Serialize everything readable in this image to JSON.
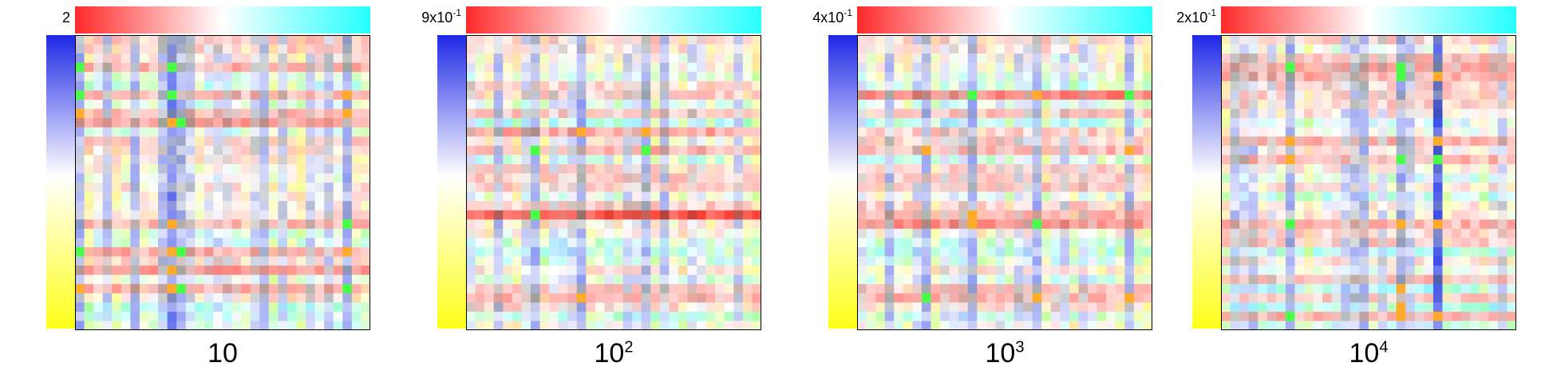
{
  "panels": [
    {
      "id": "p1",
      "scale_label": "2",
      "scale_exp": "",
      "caption_base": "10",
      "caption_exp": "",
      "seed": 11
    },
    {
      "id": "p2",
      "scale_label": "9x10",
      "scale_exp": "-1",
      "caption_base": "10",
      "caption_exp": "2",
      "seed": 23
    },
    {
      "id": "p3",
      "scale_label": "4x10",
      "scale_exp": "-1",
      "caption_base": "10",
      "caption_exp": "3",
      "seed": 23
    },
    {
      "id": "p4",
      "scale_label": "2x10",
      "scale_exp": "-1",
      "caption_base": "10",
      "caption_exp": "4",
      "seed": 37
    }
  ],
  "colors": {
    "horizontal_colorbar": [
      "#ff2a2a",
      "#ffffff",
      "#26ffff"
    ],
    "vertical_colorbar": [
      "#1e28e6",
      "#ffffff",
      "#ffff1a"
    ]
  }
}
